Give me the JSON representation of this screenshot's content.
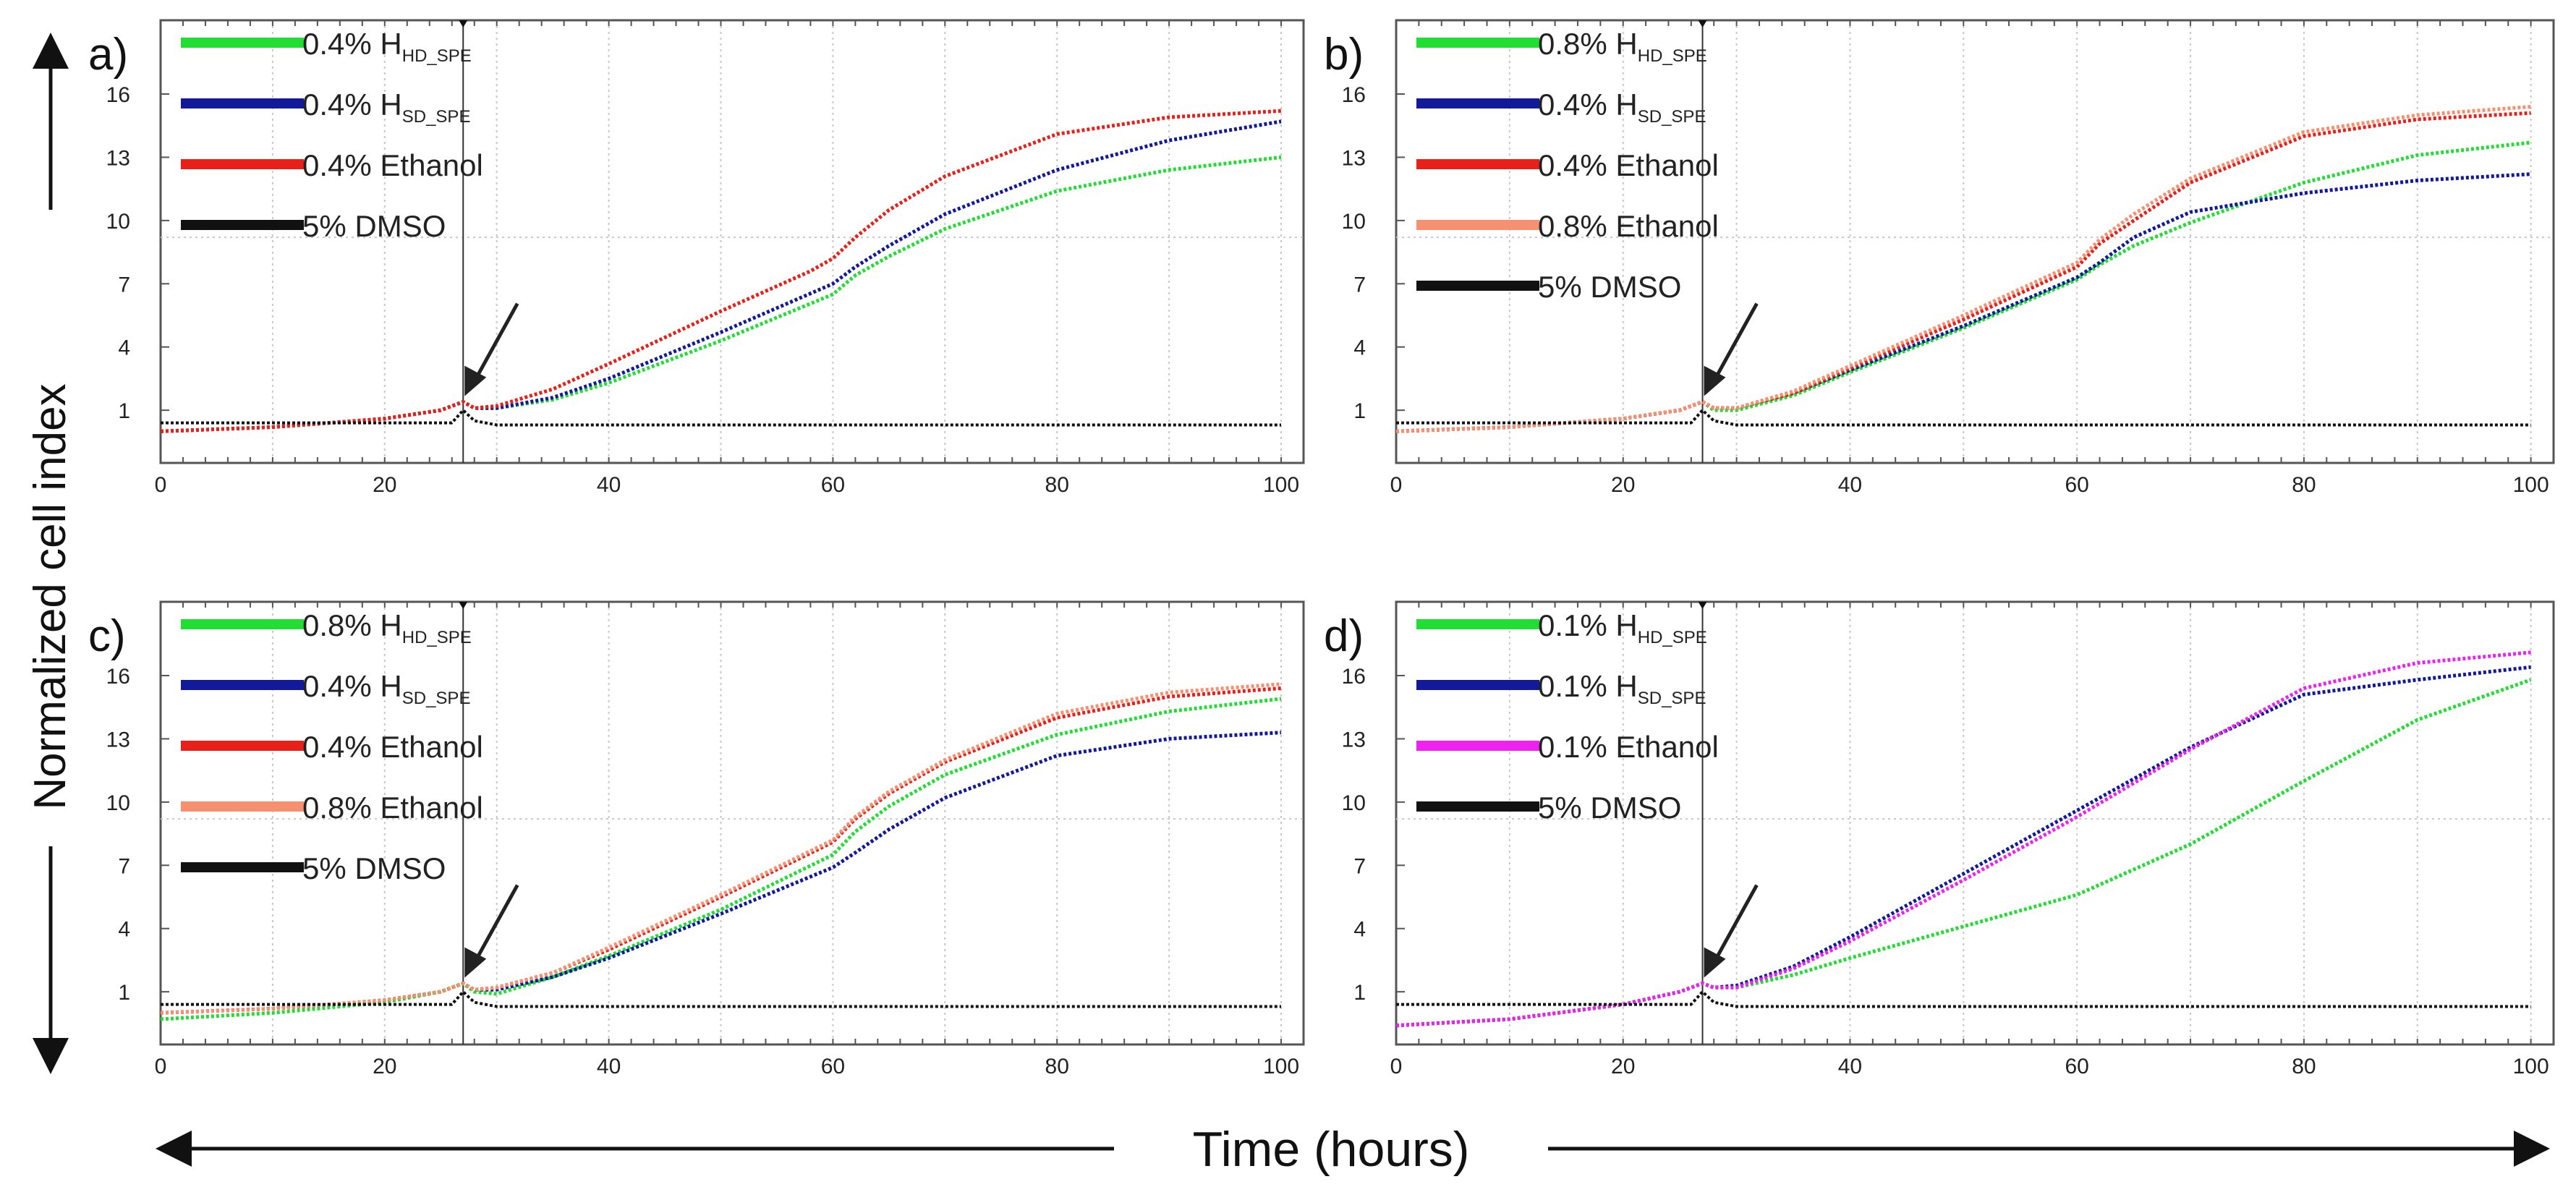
{
  "figure": {
    "ylabel": "Normalized cell index",
    "xlabel": "Time (hours)"
  },
  "colors": {
    "hd": "#22dd33",
    "sd": "#121a9a",
    "ethanol04": "#e8201a",
    "ethanol08": "#f59070",
    "ethanol01": "#ee22ee",
    "dmso": "#111111",
    "grid": "#c8c8c8",
    "axis": "#555555"
  },
  "chart_data": [
    {
      "type": "line",
      "panel": "a)",
      "xlim": [
        0,
        102
      ],
      "ylim": [
        -1.5,
        19.5
      ],
      "xticks": [
        0,
        20,
        40,
        60,
        80,
        100
      ],
      "yticks": [
        1,
        4,
        7,
        10,
        13,
        16
      ],
      "treatment_time": 27,
      "series": [
        {
          "name": "0.4% H",
          "sub": "HD_SPE",
          "color": "hd",
          "x": [
            0,
            10,
            20,
            25,
            27,
            28,
            30,
            35,
            40,
            50,
            60,
            62,
            65,
            70,
            80,
            90,
            100
          ],
          "y": [
            0.0,
            0.2,
            0.6,
            1.0,
            1.4,
            1.1,
            1.1,
            1.5,
            2.3,
            4.3,
            6.5,
            7.4,
            8.3,
            9.6,
            11.4,
            12.4,
            13.0
          ]
        },
        {
          "name": "0.4% H",
          "sub": "SD_SPE",
          "color": "sd",
          "x": [
            0,
            10,
            20,
            25,
            27,
            28,
            30,
            35,
            40,
            50,
            60,
            62,
            65,
            70,
            80,
            90,
            100
          ],
          "y": [
            0.0,
            0.2,
            0.6,
            1.0,
            1.4,
            1.1,
            1.1,
            1.6,
            2.5,
            4.7,
            7.0,
            7.8,
            8.8,
            10.3,
            12.4,
            13.8,
            14.7
          ]
        },
        {
          "name": "0.4% Ethanol",
          "sub": "",
          "color": "ethanol04",
          "x": [
            0,
            10,
            20,
            25,
            27,
            28,
            30,
            35,
            40,
            50,
            58,
            60,
            62,
            65,
            70,
            80,
            90,
            100
          ],
          "y": [
            0.0,
            0.2,
            0.6,
            1.0,
            1.4,
            1.1,
            1.2,
            2.0,
            3.2,
            5.7,
            7.6,
            8.2,
            9.2,
            10.5,
            12.1,
            14.1,
            14.9,
            15.2
          ]
        },
        {
          "name": "5% DMSO",
          "sub": "",
          "color": "dmso",
          "x": [
            0,
            26,
            27,
            28,
            29,
            30,
            40,
            60,
            80,
            100
          ],
          "y": [
            0.4,
            0.4,
            1.0,
            0.5,
            0.4,
            0.3,
            0.3,
            0.3,
            0.3,
            0.3
          ]
        }
      ]
    },
    {
      "type": "line",
      "panel": "b)",
      "xlim": [
        0,
        102
      ],
      "ylim": [
        -1.5,
        19.5
      ],
      "xticks": [
        0,
        20,
        40,
        60,
        80,
        100
      ],
      "yticks": [
        1,
        4,
        7,
        10,
        13,
        16
      ],
      "treatment_time": 27,
      "series": [
        {
          "name": "0.8% H",
          "sub": "HD_SPE",
          "color": "hd",
          "x": [
            0,
            10,
            20,
            25,
            27,
            28,
            30,
            35,
            40,
            50,
            60,
            62,
            65,
            70,
            80,
            90,
            100
          ],
          "y": [
            0.0,
            0.2,
            0.6,
            1.0,
            1.4,
            1.0,
            1.0,
            1.7,
            2.8,
            4.9,
            7.2,
            7.9,
            8.8,
            9.9,
            11.8,
            13.1,
            13.7
          ]
        },
        {
          "name": "0.4% H",
          "sub": "SD_SPE",
          "color": "sd",
          "x": [
            0,
            10,
            20,
            25,
            27,
            28,
            30,
            35,
            40,
            50,
            60,
            62,
            65,
            70,
            80,
            90,
            100
          ],
          "y": [
            0.0,
            0.2,
            0.6,
            1.0,
            1.4,
            1.1,
            1.1,
            1.8,
            2.9,
            5.0,
            7.3,
            8.0,
            9.2,
            10.4,
            11.3,
            11.9,
            12.2
          ]
        },
        {
          "name": "0.4% Ethanol",
          "sub": "",
          "color": "ethanol04",
          "x": [
            0,
            10,
            20,
            25,
            27,
            28,
            30,
            35,
            40,
            50,
            60,
            62,
            65,
            70,
            80,
            90,
            100
          ],
          "y": [
            0.0,
            0.2,
            0.6,
            1.0,
            1.4,
            1.1,
            1.1,
            1.8,
            3.0,
            5.3,
            7.8,
            8.9,
            10.0,
            11.8,
            14.0,
            14.8,
            15.1
          ]
        },
        {
          "name": "0.8% Ethanol",
          "sub": "",
          "color": "ethanol08",
          "x": [
            0,
            10,
            20,
            25,
            27,
            28,
            30,
            35,
            40,
            50,
            60,
            62,
            65,
            70,
            80,
            90,
            100
          ],
          "y": [
            0.0,
            0.2,
            0.6,
            1.0,
            1.4,
            1.1,
            1.1,
            1.9,
            3.1,
            5.5,
            8.0,
            9.1,
            10.3,
            12.0,
            14.2,
            15.0,
            15.4
          ]
        },
        {
          "name": "5% DMSO",
          "sub": "",
          "color": "dmso",
          "x": [
            0,
            26,
            27,
            28,
            29,
            30,
            40,
            60,
            80,
            100
          ],
          "y": [
            0.4,
            0.4,
            1.0,
            0.5,
            0.4,
            0.3,
            0.3,
            0.3,
            0.3,
            0.3
          ]
        }
      ]
    },
    {
      "type": "line",
      "panel": "c)",
      "xlim": [
        0,
        102
      ],
      "ylim": [
        -1.5,
        19.5
      ],
      "xticks": [
        0,
        20,
        40,
        60,
        80,
        100
      ],
      "yticks": [
        1,
        4,
        7,
        10,
        13,
        16
      ],
      "treatment_time": 27,
      "series": [
        {
          "name": "0.8% H",
          "sub": "HD_SPE",
          "color": "hd",
          "x": [
            0,
            10,
            20,
            25,
            27,
            28,
            30,
            35,
            40,
            50,
            60,
            62,
            65,
            70,
            80,
            90,
            100
          ],
          "y": [
            -0.3,
            0.0,
            0.5,
            1.0,
            1.4,
            1.0,
            0.9,
            1.7,
            2.7,
            4.9,
            7.5,
            8.6,
            9.8,
            11.3,
            13.2,
            14.3,
            14.9
          ]
        },
        {
          "name": "0.4% H",
          "sub": "SD_SPE",
          "color": "sd",
          "x": [
            0,
            10,
            20,
            25,
            27,
            28,
            30,
            35,
            40,
            50,
            60,
            62,
            65,
            70,
            80,
            90,
            100
          ],
          "y": [
            0.0,
            0.2,
            0.6,
            1.0,
            1.4,
            1.1,
            1.1,
            1.7,
            2.6,
            4.7,
            6.9,
            7.6,
            8.7,
            10.2,
            12.2,
            13.0,
            13.3
          ]
        },
        {
          "name": "0.4% Ethanol",
          "sub": "",
          "color": "ethanol04",
          "x": [
            0,
            10,
            20,
            25,
            27,
            28,
            30,
            35,
            40,
            50,
            60,
            62,
            65,
            70,
            80,
            90,
            100
          ],
          "y": [
            0.0,
            0.2,
            0.6,
            1.0,
            1.4,
            1.1,
            1.2,
            1.9,
            3.0,
            5.5,
            8.1,
            9.2,
            10.4,
            11.9,
            14.0,
            15.0,
            15.4
          ]
        },
        {
          "name": "0.8% Ethanol",
          "sub": "",
          "color": "ethanol08",
          "x": [
            0,
            10,
            20,
            25,
            27,
            28,
            30,
            35,
            40,
            50,
            60,
            62,
            65,
            70,
            80,
            90,
            100
          ],
          "y": [
            0.0,
            0.2,
            0.6,
            1.0,
            1.4,
            1.1,
            1.2,
            1.9,
            3.1,
            5.6,
            8.2,
            9.3,
            10.5,
            12.0,
            14.2,
            15.2,
            15.6
          ]
        },
        {
          "name": "5% DMSO",
          "sub": "",
          "color": "dmso",
          "x": [
            0,
            26,
            27,
            28,
            29,
            30,
            40,
            60,
            80,
            100
          ],
          "y": [
            0.4,
            0.4,
            1.0,
            0.5,
            0.4,
            0.3,
            0.3,
            0.3,
            0.3,
            0.3
          ]
        }
      ]
    },
    {
      "type": "line",
      "panel": "d)",
      "xlim": [
        0,
        102
      ],
      "ylim": [
        -1.5,
        19.5
      ],
      "xticks": [
        0,
        20,
        40,
        60,
        80,
        100
      ],
      "yticks": [
        1,
        4,
        7,
        10,
        13,
        16
      ],
      "treatment_time": 27,
      "series": [
        {
          "name": "0.1% H",
          "sub": "HD_SPE",
          "color": "hd",
          "x": [
            0,
            10,
            20,
            25,
            27,
            28,
            30,
            35,
            40,
            50,
            60,
            70,
            80,
            90,
            100
          ],
          "y": [
            -0.6,
            -0.3,
            0.4,
            1.0,
            1.4,
            1.2,
            1.2,
            1.8,
            2.6,
            4.1,
            5.6,
            8.0,
            11.0,
            13.9,
            15.8
          ]
        },
        {
          "name": "0.1% H",
          "sub": "SD_SPE",
          "color": "sd",
          "x": [
            0,
            10,
            20,
            25,
            27,
            28,
            30,
            35,
            40,
            50,
            60,
            70,
            80,
            90,
            100
          ],
          "y": [
            -0.6,
            -0.3,
            0.4,
            1.0,
            1.4,
            1.2,
            1.3,
            2.2,
            3.6,
            6.6,
            9.6,
            12.6,
            15.1,
            15.8,
            16.4
          ]
        },
        {
          "name": "0.1% Ethanol",
          "sub": "",
          "color": "ethanol01",
          "x": [
            0,
            10,
            20,
            25,
            27,
            28,
            30,
            35,
            40,
            50,
            60,
            70,
            80,
            90,
            100
          ],
          "y": [
            -0.6,
            -0.3,
            0.4,
            1.0,
            1.4,
            1.2,
            1.2,
            2.1,
            3.4,
            6.3,
            9.3,
            12.5,
            15.4,
            16.6,
            17.1
          ]
        },
        {
          "name": "5% DMSO",
          "sub": "",
          "color": "dmso",
          "x": [
            0,
            26,
            27,
            28,
            29,
            30,
            40,
            60,
            80,
            100
          ],
          "y": [
            0.4,
            0.4,
            1.0,
            0.5,
            0.4,
            0.3,
            0.3,
            0.3,
            0.3,
            0.3
          ]
        }
      ]
    }
  ]
}
